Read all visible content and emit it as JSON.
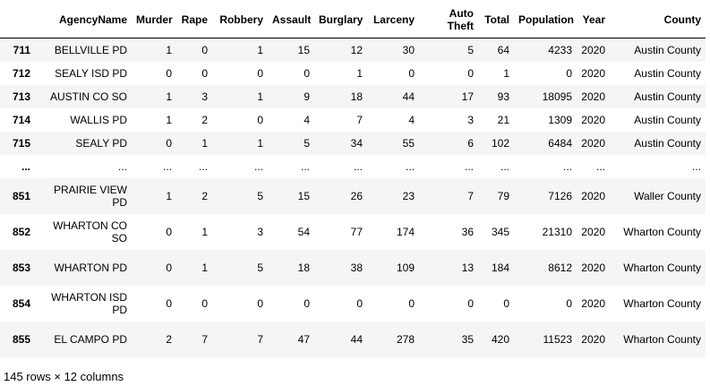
{
  "table": {
    "index_header": "",
    "columns": [
      "AgencyName",
      "Murder",
      "Rape",
      "Robbery",
      "Assault",
      "Burglary",
      "Larceny",
      "Auto Theft",
      "Total",
      "Population",
      "Year",
      "County"
    ],
    "rows": [
      {
        "index": "711",
        "cells": [
          "BELLVILLE PD",
          "1",
          "0",
          "1",
          "15",
          "12",
          "30",
          "5",
          "64",
          "4233",
          "2020",
          "Austin County"
        ]
      },
      {
        "index": "712",
        "cells": [
          "SEALY ISD PD",
          "0",
          "0",
          "0",
          "0",
          "1",
          "0",
          "0",
          "1",
          "0",
          "2020",
          "Austin County"
        ]
      },
      {
        "index": "713",
        "cells": [
          "AUSTIN CO SO",
          "1",
          "3",
          "1",
          "9",
          "18",
          "44",
          "17",
          "93",
          "18095",
          "2020",
          "Austin County"
        ]
      },
      {
        "index": "714",
        "cells": [
          "WALLIS PD",
          "1",
          "2",
          "0",
          "4",
          "7",
          "4",
          "3",
          "21",
          "1309",
          "2020",
          "Austin County"
        ]
      },
      {
        "index": "715",
        "cells": [
          "SEALY PD",
          "0",
          "1",
          "1",
          "5",
          "34",
          "55",
          "6",
          "102",
          "6484",
          "2020",
          "Austin County"
        ]
      },
      {
        "index": "...",
        "cells": [
          "...",
          "...",
          "...",
          "...",
          "...",
          "...",
          "...",
          "...",
          "...",
          "...",
          "...",
          "..."
        ]
      },
      {
        "index": "851",
        "cells": [
          "PRAIRIE VIEW PD",
          "1",
          "2",
          "5",
          "15",
          "26",
          "23",
          "7",
          "79",
          "7126",
          "2020",
          "Waller County"
        ]
      },
      {
        "index": "852",
        "cells": [
          "WHARTON CO SO",
          "0",
          "1",
          "3",
          "54",
          "77",
          "174",
          "36",
          "345",
          "21310",
          "2020",
          "Wharton County"
        ]
      },
      {
        "index": "853",
        "cells": [
          "WHARTON PD",
          "0",
          "1",
          "5",
          "18",
          "38",
          "109",
          "13",
          "184",
          "8612",
          "2020",
          "Wharton County"
        ]
      },
      {
        "index": "854",
        "cells": [
          "WHARTON ISD PD",
          "0",
          "0",
          "0",
          "0",
          "0",
          "0",
          "0",
          "0",
          "0",
          "2020",
          "Wharton County"
        ]
      },
      {
        "index": "855",
        "cells": [
          "EL CAMPO PD",
          "2",
          "7",
          "7",
          "47",
          "44",
          "278",
          "35",
          "420",
          "11523",
          "2020",
          "Wharton County"
        ]
      }
    ]
  },
  "footer": {
    "shape_text": "145 rows × 12 columns"
  }
}
